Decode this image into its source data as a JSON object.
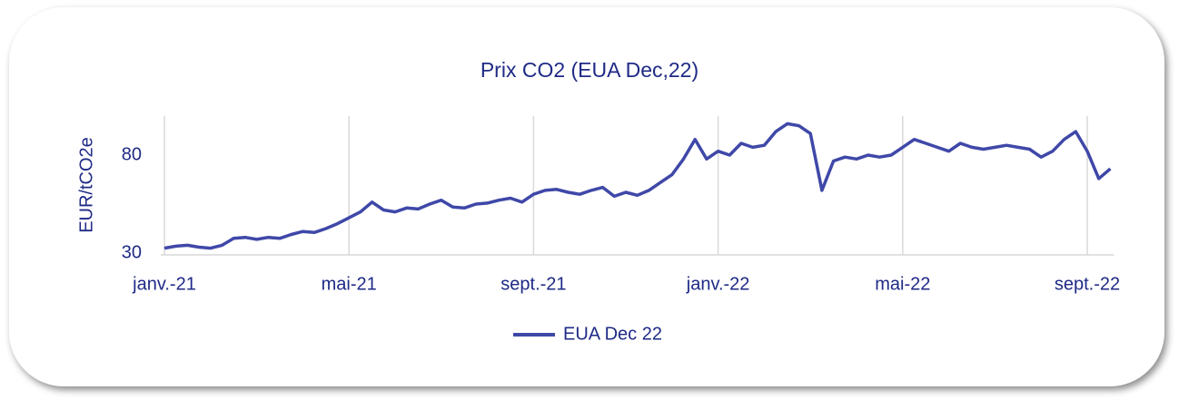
{
  "chart_data": {
    "type": "line",
    "title": "Prix CO2 (EUA Dec,22)",
    "y_label": "EUR/tCO2e",
    "categories": [
      "janv.-21",
      null,
      null,
      null,
      null,
      null,
      null,
      null,
      null,
      null,
      null,
      null,
      null,
      null,
      null,
      null,
      "mai-21",
      null,
      null,
      null,
      null,
      null,
      null,
      null,
      null,
      null,
      null,
      null,
      null,
      null,
      null,
      null,
      "sept.-21",
      null,
      null,
      null,
      null,
      null,
      null,
      null,
      null,
      null,
      null,
      null,
      null,
      null,
      null,
      null,
      "janv.-22",
      null,
      null,
      null,
      null,
      null,
      null,
      null,
      null,
      null,
      null,
      null,
      null,
      null,
      null,
      null,
      "mai-22",
      null,
      null,
      null,
      null,
      null,
      null,
      null,
      null,
      null,
      null,
      null,
      null,
      null,
      null,
      null,
      "sept.-22",
      null,
      null
    ],
    "series": [
      {
        "name": "EUA Dec 22",
        "color": "#3f48a8",
        "values": [
          32.5,
          33.5,
          34,
          33,
          32.5,
          34,
          37.5,
          38,
          37,
          38,
          37.5,
          39.5,
          41,
          40.5,
          42.5,
          45,
          48,
          51,
          56,
          52,
          51,
          53,
          52.5,
          55,
          57,
          53.5,
          53,
          55,
          55.5,
          57,
          58,
          56,
          60,
          62,
          62.5,
          61,
          60,
          62,
          63.5,
          59,
          61,
          59.5,
          62,
          66,
          70,
          78,
          88,
          78,
          82,
          80,
          86,
          84,
          85,
          92,
          96,
          95,
          91,
          62,
          77,
          79,
          78,
          80,
          79,
          80,
          84,
          88,
          86,
          84,
          82,
          86,
          84,
          83,
          84,
          85,
          84,
          83,
          79,
          82,
          88,
          92,
          82,
          68,
          73
        ]
      }
    ],
    "ylim": [
      30,
      100
    ],
    "yticks": [
      30,
      80
    ],
    "grid": true,
    "legend": "bottom"
  }
}
